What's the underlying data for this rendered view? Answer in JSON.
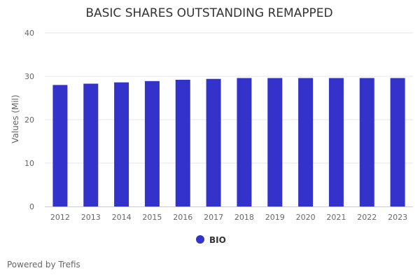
{
  "chart_data": {
    "type": "bar",
    "title": "BASIC SHARES OUTSTANDING REMAPPED",
    "xlabel": "",
    "ylabel": "Values (Mil)",
    "ylim": [
      0,
      40
    ],
    "yticks": [
      0,
      10,
      20,
      30,
      40
    ],
    "grid": true,
    "legend_position": "bottom-center",
    "categories": [
      "2012",
      "2013",
      "2014",
      "2015",
      "2016",
      "2017",
      "2018",
      "2019",
      "2020",
      "2021",
      "2022",
      "2023"
    ],
    "series": [
      {
        "name": "BIO",
        "color": "#3333cc",
        "values": [
          28.0,
          28.3,
          28.6,
          28.9,
          29.2,
          29.4,
          29.6,
          29.6,
          29.6,
          29.6,
          29.6,
          29.6
        ]
      }
    ]
  },
  "credits": "Powered by Trefis"
}
